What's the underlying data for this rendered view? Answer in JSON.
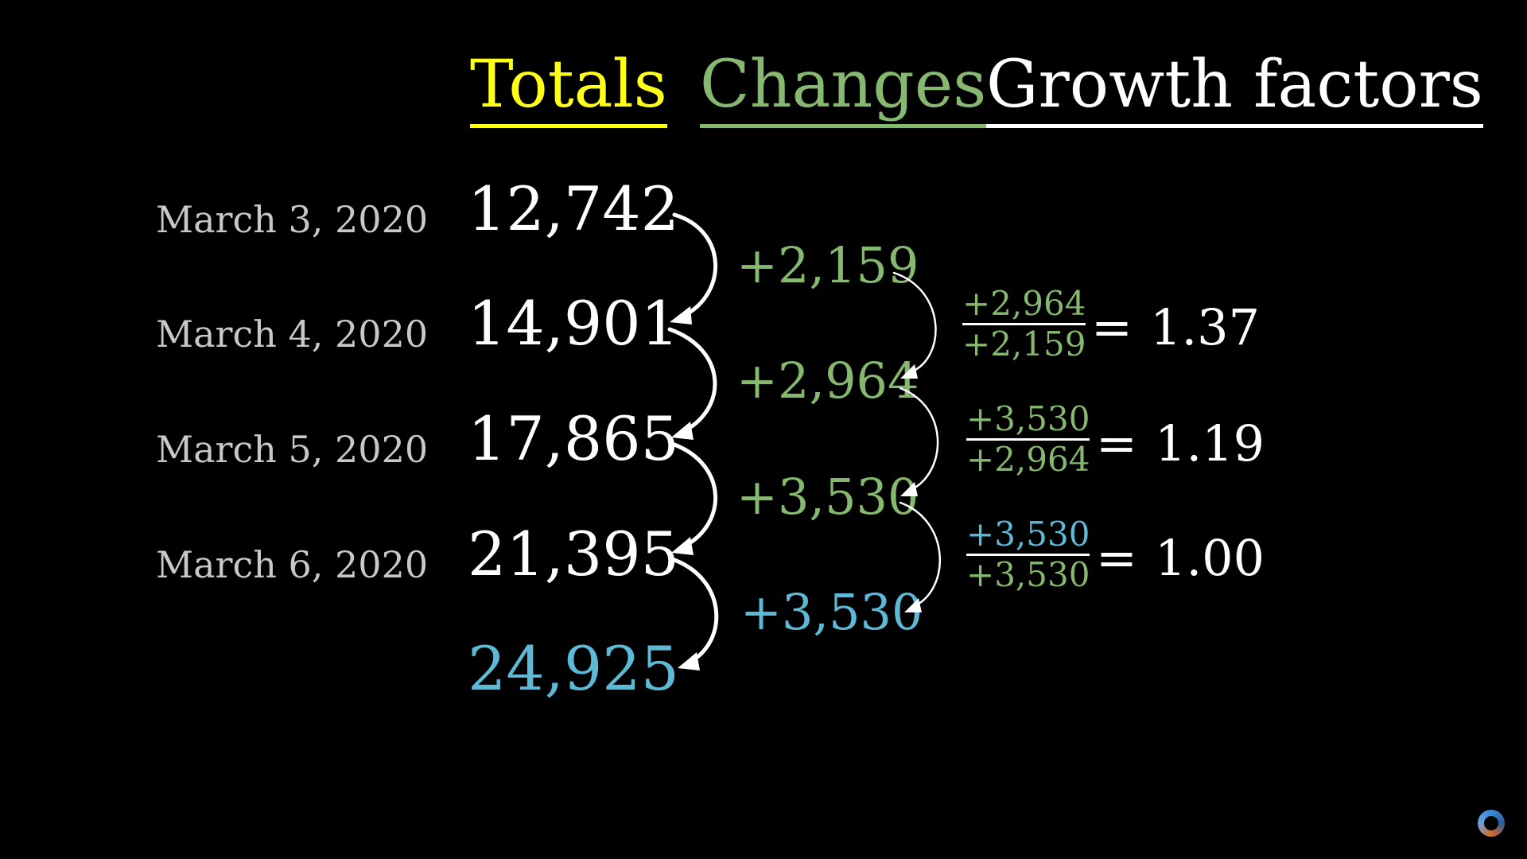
{
  "headers": {
    "totals": "Totals",
    "changes": "Changes",
    "growth": "Growth factors"
  },
  "dates": [
    "March 3, 2020",
    "March 4, 2020",
    "March 5, 2020",
    "March 6, 2020"
  ],
  "totals": [
    "12,742",
    "14,901",
    "17,865",
    "21,395",
    "24,925"
  ],
  "changes": [
    "+2,159",
    "+2,964",
    "+3,530",
    "+3,530"
  ],
  "growth_factors": [
    {
      "numerator": "+2,964",
      "denominator": "+2,159",
      "equals": "=",
      "value": "1.37"
    },
    {
      "numerator": "+3,530",
      "denominator": "+2,964",
      "equals": "=",
      "value": "1.19"
    },
    {
      "numerator": "+3,530",
      "denominator": "+3,530",
      "equals": "=",
      "value": "1.00"
    }
  ],
  "colors": {
    "totals": "#ffff1a",
    "changes": "#86b870",
    "predicted": "#5eb9d6",
    "text": "#ffffff",
    "date": "#c8c8c8"
  }
}
